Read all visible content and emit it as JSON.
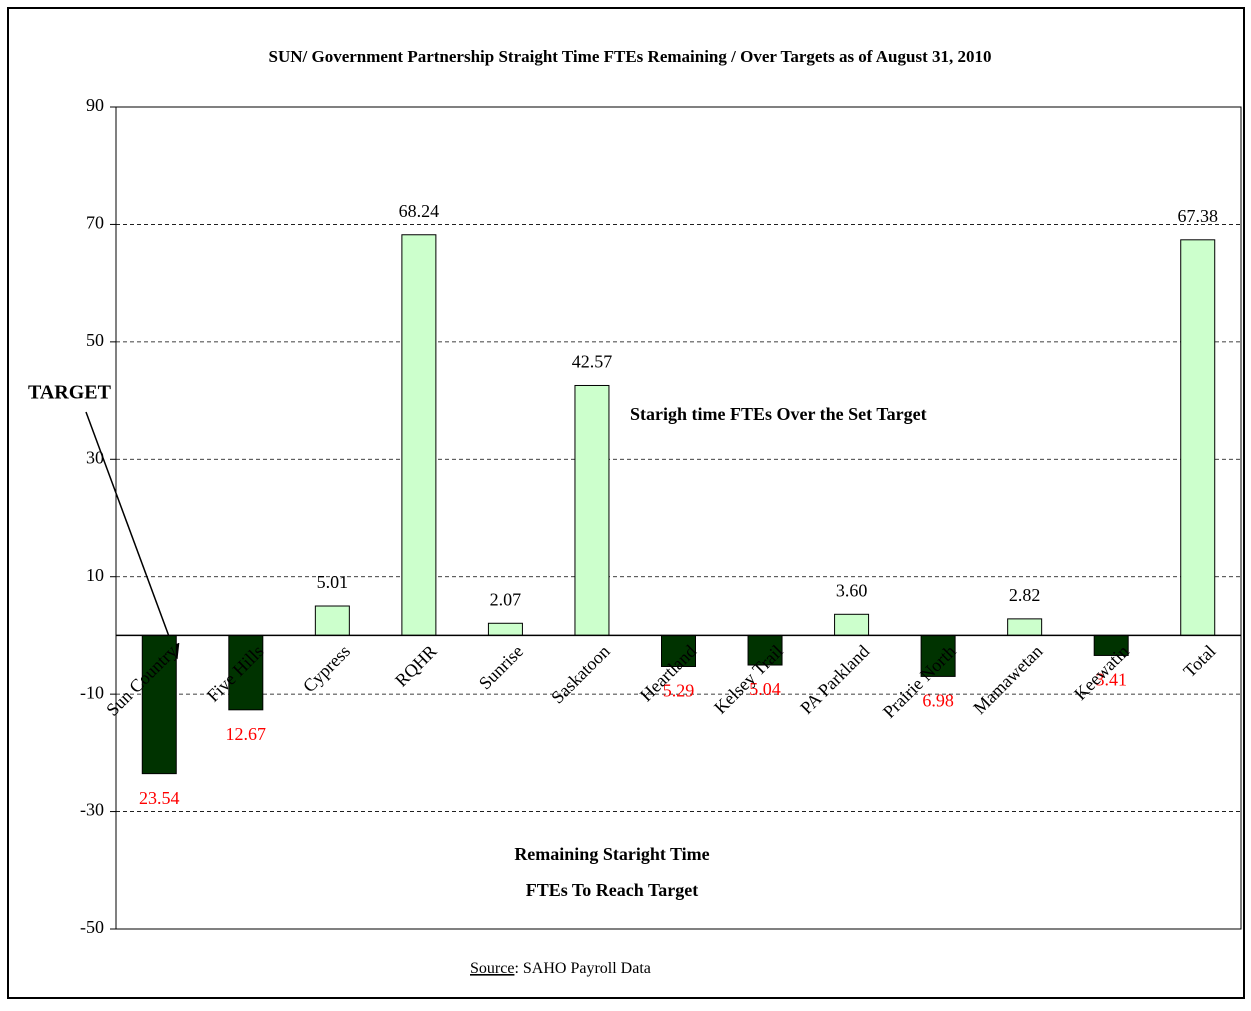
{
  "chart_data": {
    "type": "bar",
    "title": "SUN/ Government Partnership Straight Time FTEs Remaining / Over Targets as of August 31, 2010",
    "categories": [
      "Sun Country",
      "Five Hills",
      "Cypress",
      "RQHR",
      "Sunrise",
      "Saskatoon",
      "Heartland",
      "Kelsey Trail",
      "PA Parkland",
      "Prairie North",
      "Mamawetan",
      "Keewatin",
      "Total"
    ],
    "values": [
      -23.54,
      -12.67,
      5.01,
      68.24,
      2.07,
      42.57,
      -5.29,
      -5.04,
      3.6,
      -6.98,
      2.82,
      -3.41,
      67.38
    ],
    "value_labels": [
      "23.54",
      "12.67",
      "5.01",
      "68.24",
      "2.07",
      "42.57",
      "5.29",
      "5.04",
      "3.60",
      "6.98",
      "2.82",
      "3.41",
      "67.38"
    ],
    "colors": [
      "#003300",
      "#003300",
      "#ccffcc",
      "#ccffcc",
      "#ccffcc",
      "#ccffcc",
      "#003300",
      "#003300",
      "#ccffcc",
      "#003300",
      "#ccffcc",
      "#003300",
      "#ccffcc"
    ],
    "ylim": [
      -50,
      90
    ],
    "yticks": [
      -50,
      -30,
      -10,
      10,
      30,
      50,
      70,
      90
    ],
    "grid": true,
    "annotations": {
      "target": "TARGET",
      "over": "Starigh time FTEs Over the Set Target",
      "remaining": [
        "Remaining Staright Time",
        "FTEs To Reach Target"
      ]
    },
    "source": {
      "label": "Source",
      "text": ":  SAHO Payroll Data"
    }
  }
}
